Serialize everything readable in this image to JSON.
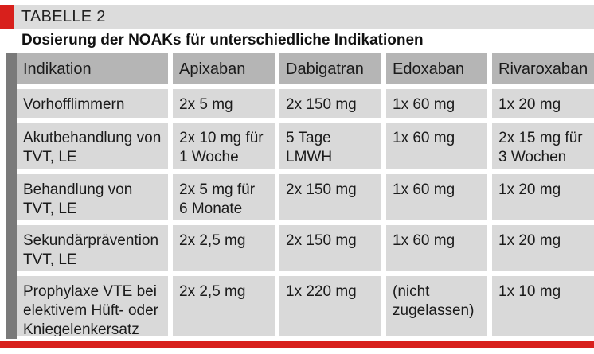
{
  "label": {
    "text": "TABELLE 2",
    "accent_color": "#d8201c"
  },
  "title": "Dosierung der NOAKs für unterschiedliche Indikationen",
  "table": {
    "headers": [
      "Indikation",
      "Apixaban",
      "Dabigatran",
      "Edoxaban",
      "Rivaroxaban"
    ],
    "rows": [
      [
        "Vorhofflimmern",
        "2x 5 mg",
        "2x 150 mg",
        "1x 60 mg",
        "1x 20 mg"
      ],
      [
        "Akutbehandlung von\nTVT, LE",
        "2x 10 mg für\n1 Woche",
        "5 Tage LMWH",
        "1x 60 mg",
        "2x 15 mg für\n3 Wochen"
      ],
      [
        "Behandlung von\nTVT, LE",
        "2x 5 mg für\n6 Monate",
        "2x 150 mg",
        "1x 60 mg",
        "1x 20 mg"
      ],
      [
        "Sekundärprävention\nTVT, LE",
        "2x 2,5 mg",
        "2x 150 mg",
        "1x 60 mg",
        "1x 20 mg"
      ],
      [
        "Prophylaxe VTE bei\nelektivem Hüft- oder\nKniegelenkersatz",
        "2x 2,5 mg",
        "1x 220 mg",
        "(nicht\nzugelassen)",
        "1x 10 mg"
      ]
    ],
    "header_bg": "#b5b5b5",
    "row_bg": "#d9d9d9"
  }
}
